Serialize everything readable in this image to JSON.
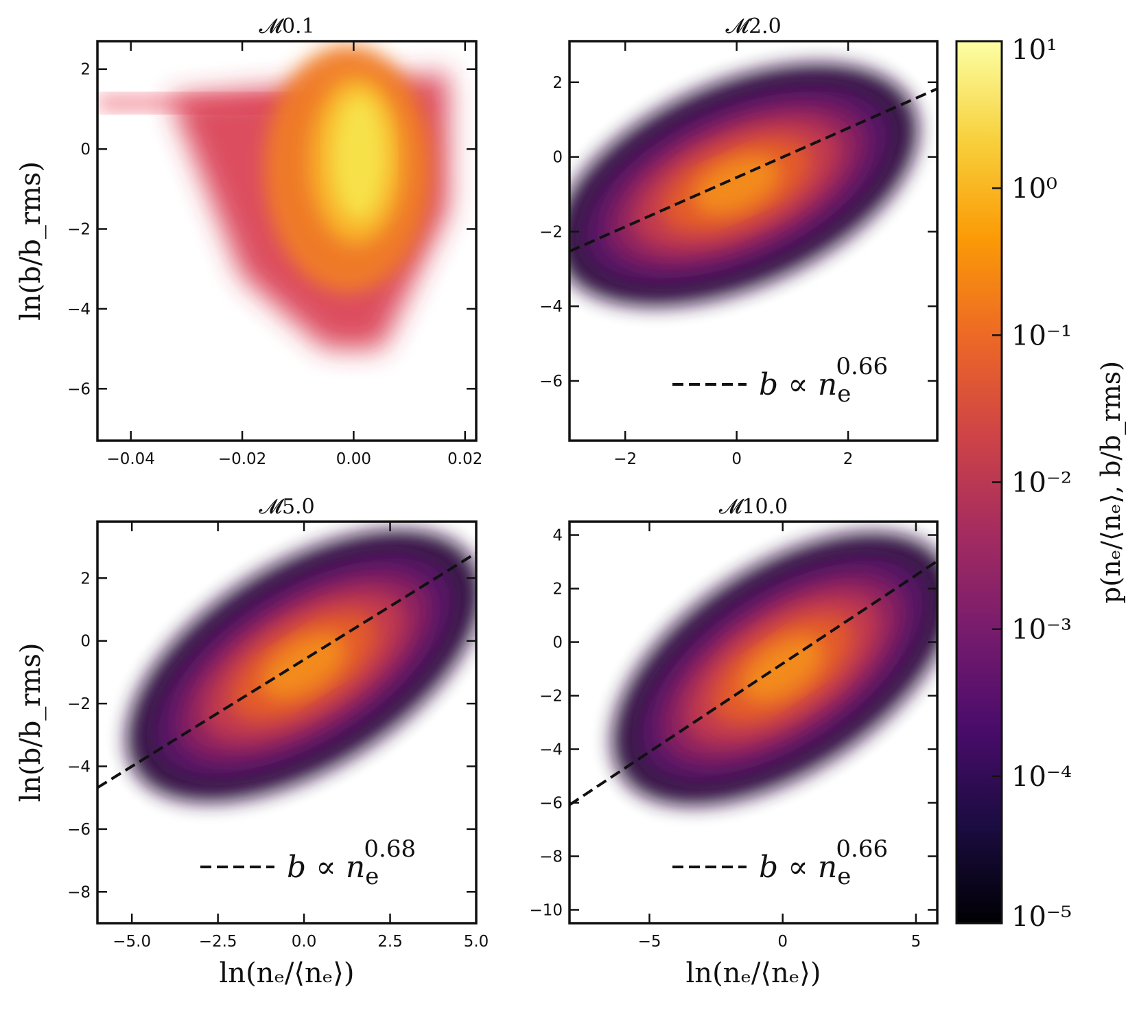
{
  "figure": {
    "colorbar": {
      "label": "p(nₑ/⟨nₑ⟩, b/b_rms)",
      "scale": "log",
      "ticks": [
        "10¹",
        "10⁰",
        "10⁻¹",
        "10⁻²",
        "10⁻³",
        "10⁻⁴",
        "10⁻⁵"
      ],
      "range": [
        1e-05,
        10
      ],
      "colormap": "inferno",
      "stops": [
        "#000004",
        "#1b0c41",
        "#4a0c6b",
        "#781c6d",
        "#a52c60",
        "#cf4446",
        "#ed6925",
        "#fb9b06",
        "#f7d13d",
        "#fcffa4"
      ]
    }
  },
  "chart_data": [
    {
      "type": "heatmap",
      "title": "𝓜0.1",
      "xlabel": "",
      "ylabel": "ln(b/b_rms)",
      "xlim": [
        -0.046,
        0.022
      ],
      "ylim": [
        -7.3,
        2.7
      ],
      "xticks": [
        -0.04,
        -0.02,
        0.0,
        0.02
      ],
      "xtick_labels": [
        "−0.04",
        "−0.02",
        "0.00",
        "0.02"
      ],
      "yticks": [
        2,
        0,
        -2,
        -4,
        -6
      ],
      "ytick_labels": [
        "2",
        "0",
        "−2",
        "−4",
        "−6"
      ],
      "density_peak": {
        "x": 0.0,
        "y": -0.5
      },
      "fit": null
    },
    {
      "type": "heatmap",
      "title": "𝓜2.0",
      "xlabel": "",
      "ylabel": "",
      "xlim": [
        -3.0,
        3.6
      ],
      "ylim": [
        -7.6,
        3.1
      ],
      "xticks": [
        -2,
        0,
        2
      ],
      "xtick_labels": [
        "−2",
        "0",
        "2"
      ],
      "yticks": [
        2,
        0,
        -2,
        -4,
        -6
      ],
      "ytick_labels": [
        "2",
        "0",
        "−2",
        "−4",
        "−6"
      ],
      "density_peak": {
        "x": 0.0,
        "y": -0.5
      },
      "fit": {
        "label": "b ∝ nₑ^0.66",
        "base": "b ∝ n",
        "sub": "e",
        "sup": "0.66",
        "exponent": 0.66,
        "intercept": -0.55
      }
    },
    {
      "type": "heatmap",
      "title": "𝓜5.0",
      "xlabel": "ln(nₑ/⟨nₑ⟩)",
      "ylabel": "ln(b/b_rms)",
      "xlim": [
        -6.0,
        5.0
      ],
      "ylim": [
        -9.0,
        3.8
      ],
      "xticks": [
        -5.0,
        -2.5,
        0.0,
        2.5,
        5.0
      ],
      "xtick_labels": [
        "−5.0",
        "−2.5",
        "0.0",
        "2.5",
        "5.0"
      ],
      "yticks": [
        2,
        0,
        -2,
        -4,
        -6,
        -8
      ],
      "ytick_labels": [
        "2",
        "0",
        "−2",
        "−4",
        "−6",
        "−8"
      ],
      "density_peak": {
        "x": 0.0,
        "y": -0.5
      },
      "fit": {
        "label": "b ∝ nₑ^0.68",
        "base": "b ∝ n",
        "sub": "e",
        "sup": "0.68",
        "exponent": 0.68,
        "intercept": -0.6
      }
    },
    {
      "type": "heatmap",
      "title": "𝓜10.0",
      "xlabel": "ln(nₑ/⟨nₑ⟩)",
      "ylabel": "",
      "xlim": [
        -8.0,
        5.8
      ],
      "ylim": [
        -10.5,
        4.5
      ],
      "xticks": [
        -5,
        0,
        5
      ],
      "xtick_labels": [
        "−5",
        "0",
        "5"
      ],
      "yticks": [
        4,
        2,
        0,
        -2,
        -4,
        -6,
        -8,
        -10
      ],
      "ytick_labels": [
        "4",
        "2",
        "0",
        "−2",
        "−4",
        "−6",
        "−8",
        "−10"
      ],
      "density_peak": {
        "x": 0.0,
        "y": -0.8
      },
      "fit": {
        "label": "b ∝ nₑ^0.66",
        "base": "b ∝ n",
        "sub": "e",
        "sup": "0.66",
        "exponent": 0.66,
        "intercept": -0.8
      }
    }
  ]
}
